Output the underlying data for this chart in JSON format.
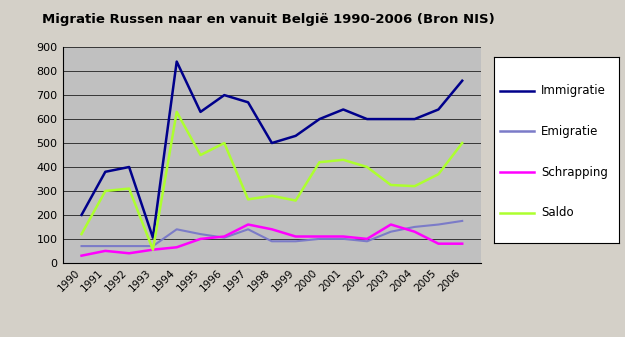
{
  "title": "Migratie Russen naar en vanuit België 1990-2006 (Bron NIS)",
  "years": [
    1990,
    1991,
    1992,
    1993,
    1994,
    1995,
    1996,
    1997,
    1998,
    1999,
    2000,
    2001,
    2002,
    2003,
    2004,
    2005,
    2006
  ],
  "immigratie": [
    200,
    380,
    400,
    105,
    840,
    630,
    700,
    670,
    500,
    530,
    600,
    640,
    600,
    600,
    600,
    640,
    760
  ],
  "emigratie": [
    70,
    70,
    70,
    70,
    140,
    120,
    105,
    140,
    90,
    90,
    100,
    100,
    90,
    130,
    150,
    160,
    175
  ],
  "schrapping": [
    30,
    50,
    40,
    55,
    65,
    100,
    110,
    160,
    140,
    110,
    110,
    110,
    100,
    160,
    130,
    80,
    80
  ],
  "saldo": [
    120,
    300,
    310,
    55,
    630,
    450,
    500,
    265,
    280,
    260,
    420,
    430,
    400,
    325,
    320,
    370,
    500
  ],
  "immigratie_color": "#00008B",
  "emigratie_color": "#7B7BC8",
  "schrapping_color": "#FF00FF",
  "saldo_color": "#ADFF2F",
  "fig_bg_color": "#D4D0C8",
  "plot_bg_color": "#C0C0C0",
  "ylim": [
    0,
    900
  ],
  "yticks": [
    0,
    100,
    200,
    300,
    400,
    500,
    600,
    700,
    800,
    900
  ],
  "legend_labels": [
    "Immigratie",
    "Emigratie",
    "Schrapping",
    "Saldo"
  ]
}
